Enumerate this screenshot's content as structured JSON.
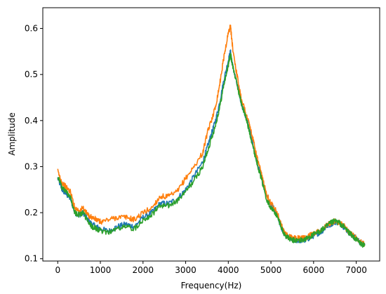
{
  "chart_data": {
    "type": "line",
    "title": "",
    "xlabel": "Frequency(Hz)",
    "ylabel": "Amplitude",
    "xlim": [
      -350,
      7550
    ],
    "ylim": [
      0.095,
      0.645
    ],
    "x_ticks": [
      0,
      1000,
      2000,
      3000,
      4000,
      5000,
      6000,
      7000
    ],
    "y_ticks": [
      0.1,
      0.2,
      0.3,
      0.4,
      0.5,
      0.6
    ],
    "x_tick_labels": [
      "0",
      "1000",
      "2000",
      "3000",
      "4000",
      "5000",
      "6000",
      "7000"
    ],
    "y_tick_labels": [
      "0.1",
      "0.2",
      "0.3",
      "0.4",
      "0.5",
      "0.6"
    ],
    "grid": false,
    "legend": false,
    "series": [
      {
        "color": "#1f77b4",
        "x": [
          0,
          100,
          200,
          300,
          400,
          500,
          600,
          700,
          800,
          900,
          1000,
          1200,
          1400,
          1600,
          1800,
          2000,
          2200,
          2400,
          2600,
          2800,
          3000,
          3200,
          3400,
          3500,
          3600,
          3700,
          3800,
          3900,
          4000,
          4050,
          4100,
          4200,
          4300,
          4400,
          4500,
          4600,
          4700,
          4800,
          4900,
          5000,
          5100,
          5200,
          5300,
          5400,
          5500,
          5600,
          5700,
          5800,
          5900,
          6000,
          6100,
          6200,
          6300,
          6400,
          6500,
          6600,
          6700,
          6800,
          6900,
          7000,
          7100,
          7200
        ],
        "y": [
          0.275,
          0.25,
          0.24,
          0.23,
          0.2,
          0.195,
          0.2,
          0.185,
          0.175,
          0.17,
          0.165,
          0.16,
          0.17,
          0.175,
          0.17,
          0.19,
          0.2,
          0.22,
          0.22,
          0.23,
          0.25,
          0.28,
          0.31,
          0.34,
          0.37,
          0.4,
          0.44,
          0.49,
          0.53,
          0.55,
          0.52,
          0.48,
          0.44,
          0.41,
          0.38,
          0.34,
          0.3,
          0.27,
          0.235,
          0.215,
          0.205,
          0.18,
          0.155,
          0.145,
          0.14,
          0.14,
          0.14,
          0.14,
          0.145,
          0.15,
          0.155,
          0.16,
          0.17,
          0.175,
          0.18,
          0.178,
          0.17,
          0.16,
          0.15,
          0.145,
          0.135,
          0.13
        ]
      },
      {
        "color": "#ff7f0e",
        "x": [
          0,
          100,
          200,
          300,
          400,
          500,
          600,
          700,
          800,
          900,
          1000,
          1200,
          1400,
          1600,
          1800,
          2000,
          2200,
          2400,
          2600,
          2800,
          3000,
          3200,
          3400,
          3500,
          3600,
          3700,
          3800,
          3900,
          4000,
          4050,
          4100,
          4200,
          4300,
          4400,
          4500,
          4600,
          4700,
          4800,
          4900,
          5000,
          5100,
          5200,
          5300,
          5400,
          5500,
          5600,
          5700,
          5800,
          5900,
          6000,
          6100,
          6200,
          6300,
          6400,
          6500,
          6600,
          6700,
          6800,
          6900,
          7000,
          7100,
          7200
        ],
        "y": [
          0.29,
          0.265,
          0.255,
          0.245,
          0.21,
          0.205,
          0.21,
          0.195,
          0.19,
          0.185,
          0.18,
          0.185,
          0.19,
          0.19,
          0.185,
          0.2,
          0.21,
          0.235,
          0.235,
          0.245,
          0.275,
          0.3,
          0.33,
          0.37,
          0.4,
          0.43,
          0.48,
          0.54,
          0.59,
          0.605,
          0.56,
          0.5,
          0.45,
          0.42,
          0.39,
          0.35,
          0.31,
          0.275,
          0.24,
          0.22,
          0.21,
          0.185,
          0.158,
          0.148,
          0.145,
          0.145,
          0.145,
          0.145,
          0.15,
          0.155,
          0.16,
          0.165,
          0.172,
          0.178,
          0.182,
          0.178,
          0.172,
          0.162,
          0.152,
          0.145,
          0.137,
          0.132
        ]
      },
      {
        "color": "#2ca02c",
        "x": [
          0,
          100,
          200,
          300,
          400,
          500,
          600,
          700,
          800,
          900,
          1000,
          1200,
          1400,
          1600,
          1800,
          2000,
          2200,
          2400,
          2600,
          2800,
          3000,
          3200,
          3400,
          3500,
          3600,
          3700,
          3800,
          3900,
          4000,
          4050,
          4100,
          4200,
          4300,
          4400,
          4500,
          4600,
          4700,
          4800,
          4900,
          5000,
          5100,
          5200,
          5300,
          5400,
          5500,
          5600,
          5700,
          5800,
          5900,
          6000,
          6100,
          6200,
          6300,
          6400,
          6500,
          6600,
          6700,
          6800,
          6900,
          7000,
          7100,
          7200
        ],
        "y": [
          0.28,
          0.255,
          0.245,
          0.235,
          0.2,
          0.195,
          0.2,
          0.18,
          0.17,
          0.165,
          0.16,
          0.158,
          0.165,
          0.17,
          0.165,
          0.185,
          0.195,
          0.215,
          0.215,
          0.225,
          0.245,
          0.27,
          0.3,
          0.33,
          0.36,
          0.39,
          0.43,
          0.48,
          0.52,
          0.545,
          0.52,
          0.48,
          0.44,
          0.41,
          0.375,
          0.335,
          0.3,
          0.265,
          0.23,
          0.21,
          0.2,
          0.18,
          0.155,
          0.145,
          0.14,
          0.14,
          0.14,
          0.142,
          0.147,
          0.152,
          0.157,
          0.163,
          0.17,
          0.177,
          0.182,
          0.178,
          0.17,
          0.16,
          0.15,
          0.142,
          0.133,
          0.128
        ]
      }
    ]
  }
}
